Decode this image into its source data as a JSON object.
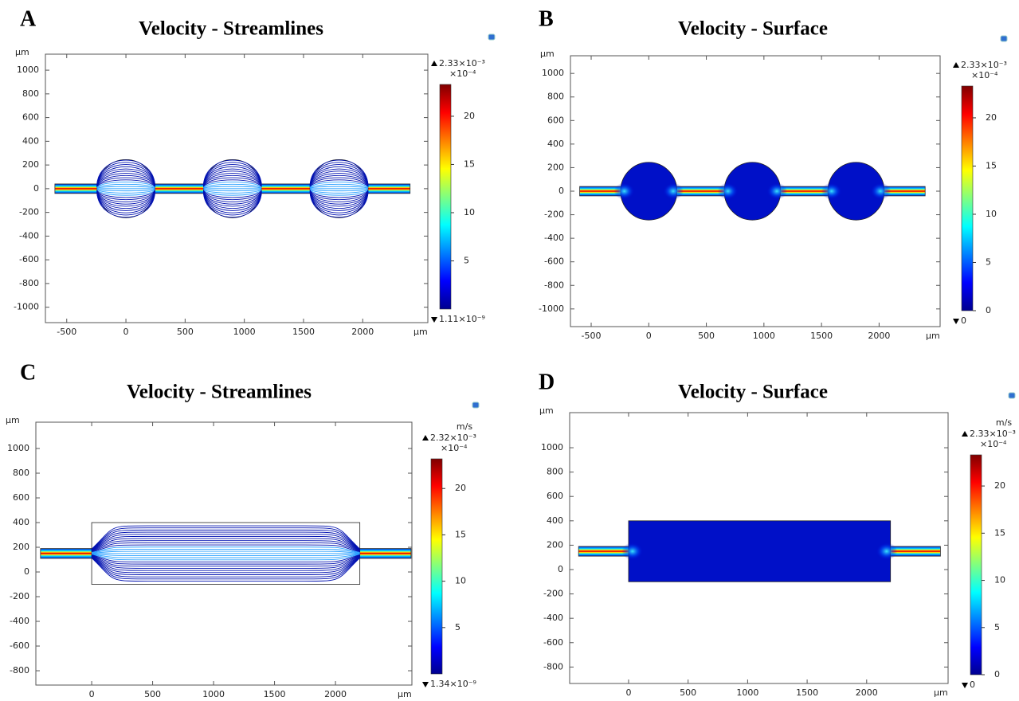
{
  "chart_data": [
    {
      "type": "streamlines",
      "panel_label": "A",
      "title": "Velocity - Streamlines",
      "xlabel": "µm",
      "ylabel": "µm",
      "xlim": [
        -680,
        2550
      ],
      "ylim": [
        -1130,
        1135
      ],
      "xticks": [
        -500,
        0,
        500,
        1000,
        1500,
        2000
      ],
      "yticks": [
        -1000,
        -800,
        -600,
        -400,
        -200,
        0,
        200,
        400,
        600,
        800,
        1000
      ],
      "channel": {
        "x": [
          -600,
          2400
        ],
        "y": [
          -40,
          40
        ]
      },
      "chambers": [
        {
          "shape": "circle",
          "x": [
            -245,
            245
          ],
          "y": [
            -245,
            245
          ]
        },
        {
          "shape": "circle",
          "x": [
            655,
            1145
          ],
          "y": [
            -245,
            245
          ]
        },
        {
          "shape": "circle",
          "x": [
            1555,
            2045
          ],
          "y": [
            -245,
            245
          ]
        }
      ],
      "colorbar": {
        "cmin": {
          "value": 1.11e-05,
          "label": "1.11×10⁻⁹"
        },
        "cmax": {
          "value": 23.3,
          "label": "2.33×10⁻³"
        },
        "scale_label": "×10⁻⁴",
        "ticks": [
          5,
          10,
          15,
          20
        ],
        "colormap": "jet"
      }
    },
    {
      "type": "surface",
      "panel_label": "B",
      "title": "Velocity - Surface",
      "xlabel": "µm",
      "ylabel": "µm",
      "xlim": [
        -680,
        2530
      ],
      "ylim": [
        -1150,
        1150
      ],
      "xticks": [
        -500,
        0,
        500,
        1000,
        1500,
        2000
      ],
      "yticks": [
        -1000,
        -800,
        -600,
        -400,
        -200,
        0,
        200,
        400,
        600,
        800,
        1000
      ],
      "channel": {
        "x": [
          -600,
          2400
        ],
        "y": [
          -40,
          40
        ]
      },
      "chambers": [
        {
          "shape": "circle",
          "x": [
            -245,
            245
          ],
          "y": [
            -245,
            245
          ]
        },
        {
          "shape": "circle",
          "x": [
            655,
            1145
          ],
          "y": [
            -245,
            245
          ]
        },
        {
          "shape": "circle",
          "x": [
            1555,
            2045
          ],
          "y": [
            -245,
            245
          ]
        }
      ],
      "colorbar": {
        "cmin": 0,
        "cmax": {
          "value": 23.3,
          "label": "2.33×10⁻³"
        },
        "scale_label": "×10⁻⁴",
        "ticks": [
          0,
          5,
          10,
          15,
          20
        ],
        "colormap": "jet"
      }
    },
    {
      "type": "streamlines",
      "panel_label": "C",
      "title": "Velocity - Streamlines",
      "xlabel": "µm",
      "ylabel": "µm",
      "xlim": [
        -458,
        2627
      ],
      "ylim": [
        -916,
        1213
      ],
      "xticks": [
        0,
        500,
        1000,
        1500,
        2000
      ],
      "yticks": [
        -800,
        -600,
        -400,
        -200,
        0,
        200,
        400,
        600,
        800,
        1000
      ],
      "channel": {
        "x": [
          -420,
          2620
        ],
        "y": [
          110,
          190
        ]
      },
      "chambers": [
        {
          "shape": "rect",
          "x": [
            0,
            2200
          ],
          "y": [
            -100,
            400
          ]
        }
      ],
      "colorbar": {
        "unit": "m/s",
        "cmin": {
          "value": 1.34e-05,
          "label": "1.34×10⁻⁹"
        },
        "cmax": {
          "value": 23.2,
          "label": "2.32×10⁻³"
        },
        "scale_label": "×10⁻⁴",
        "ticks": [
          5,
          10,
          15,
          20
        ],
        "colormap": "jet"
      }
    },
    {
      "type": "surface",
      "panel_label": "D",
      "title": "Velocity - Surface",
      "xlabel": "µm",
      "ylabel": "µm",
      "xlim": [
        -495,
        2684
      ],
      "ylim": [
        -935,
        1288
      ],
      "xticks": [
        0,
        500,
        1000,
        1500,
        2000
      ],
      "yticks": [
        -800,
        -600,
        -400,
        -200,
        0,
        200,
        400,
        600,
        800,
        1000
      ],
      "channel": {
        "x": [
          -420,
          2620
        ],
        "y": [
          110,
          190
        ]
      },
      "chambers": [
        {
          "shape": "rect",
          "x": [
            0,
            2200
          ],
          "y": [
            -100,
            400
          ]
        }
      ],
      "colorbar": {
        "unit": "m/s",
        "cmin": 0,
        "cmax": {
          "value": 23.3,
          "label": "2.33×10⁻³"
        },
        "scale_label": "×10⁻⁴",
        "ticks": [
          0,
          5,
          10,
          15,
          20
        ],
        "colormap": "jet"
      }
    }
  ]
}
